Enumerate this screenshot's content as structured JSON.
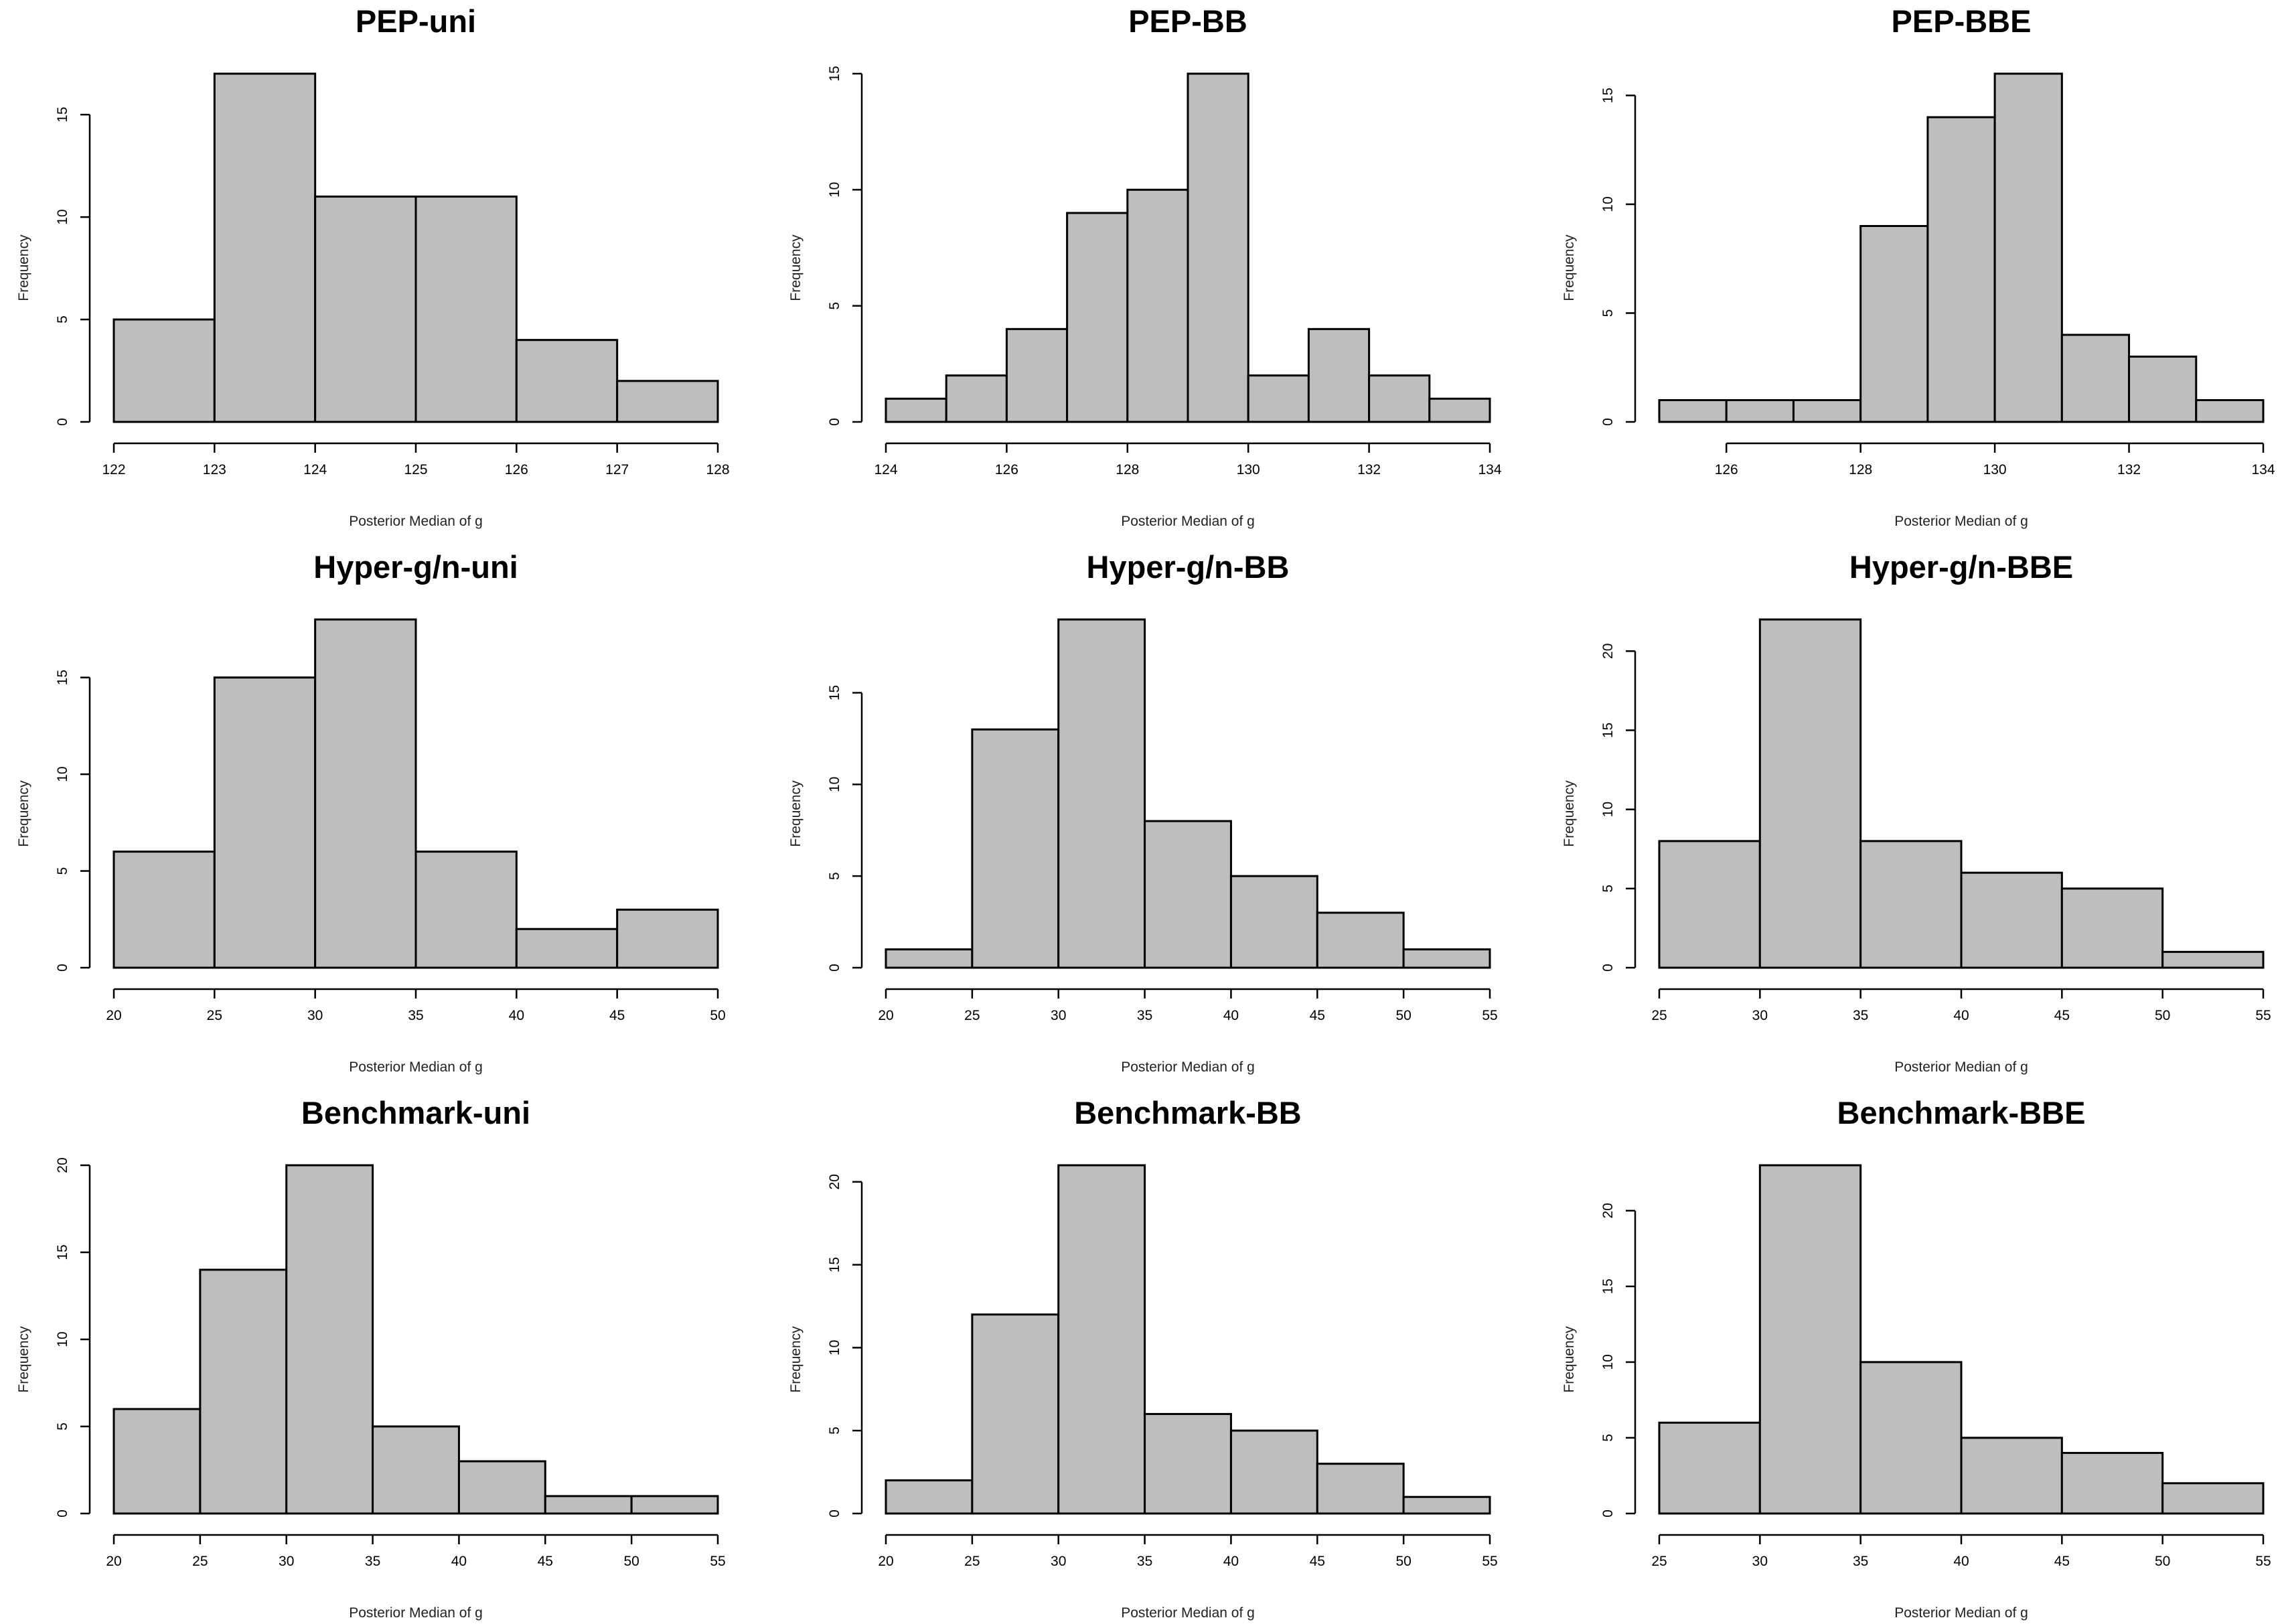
{
  "chart_data": [
    {
      "type": "bar",
      "title": "PEP-uni",
      "xlabel": "Posterior Median of g",
      "ylabel": "Frequency",
      "bin_edges": [
        122,
        123,
        124,
        125,
        126,
        127,
        128
      ],
      "values": [
        5,
        17,
        11,
        11,
        4,
        2
      ],
      "xlim": [
        122,
        128
      ],
      "xticks": [
        122,
        123,
        124,
        125,
        126,
        127,
        128
      ],
      "yticks": [
        0,
        5,
        10,
        15
      ]
    },
    {
      "type": "bar",
      "title": "PEP-BB",
      "xlabel": "Posterior Median of g",
      "ylabel": "Frequency",
      "bin_edges": [
        124,
        125,
        126,
        127,
        128,
        129,
        130,
        131,
        132,
        133,
        134
      ],
      "values": [
        1,
        2,
        4,
        9,
        10,
        15,
        2,
        4,
        2,
        1
      ],
      "xlim": [
        124,
        134
      ],
      "xticks": [
        124,
        126,
        128,
        130,
        132,
        134
      ],
      "yticks": [
        0,
        5,
        10,
        15
      ]
    },
    {
      "type": "bar",
      "title": "PEP-BBE",
      "xlabel": "Posterior Median of g",
      "ylabel": "Frequency",
      "bin_edges": [
        125,
        126,
        127,
        128,
        129,
        130,
        131,
        132,
        133,
        134
      ],
      "values": [
        1,
        1,
        1,
        9,
        14,
        16,
        4,
        3,
        1
      ],
      "xlim": [
        125,
        134
      ],
      "xticks": [
        126,
        128,
        130,
        132,
        134
      ],
      "yticks": [
        0,
        5,
        10,
        15
      ]
    },
    {
      "type": "bar",
      "title": "Hyper-g/n-uni",
      "xlabel": "Posterior Median of g",
      "ylabel": "Frequency",
      "bin_edges": [
        20,
        25,
        30,
        35,
        40,
        45,
        50
      ],
      "values": [
        6,
        15,
        18,
        6,
        2,
        3
      ],
      "xlim": [
        20,
        50
      ],
      "xticks": [
        20,
        25,
        30,
        35,
        40,
        45,
        50
      ],
      "yticks": [
        0,
        5,
        10,
        15
      ]
    },
    {
      "type": "bar",
      "title": "Hyper-g/n-BB",
      "xlabel": "Posterior Median of g",
      "ylabel": "Frequency",
      "bin_edges": [
        20,
        25,
        30,
        35,
        40,
        45,
        50,
        55
      ],
      "values": [
        1,
        13,
        19,
        8,
        5,
        3,
        1
      ],
      "xlim": [
        20,
        55
      ],
      "xticks": [
        20,
        25,
        30,
        35,
        40,
        45,
        50,
        55
      ],
      "yticks": [
        0,
        5,
        10,
        15
      ]
    },
    {
      "type": "bar",
      "title": "Hyper-g/n-BBE",
      "xlabel": "Posterior Median of g",
      "ylabel": "Frequency",
      "bin_edges": [
        25,
        30,
        35,
        40,
        45,
        50,
        55
      ],
      "values": [
        8,
        22,
        8,
        6,
        5,
        1
      ],
      "xlim": [
        25,
        55
      ],
      "xticks": [
        25,
        30,
        35,
        40,
        45,
        50,
        55
      ],
      "yticks": [
        0,
        5,
        10,
        15,
        20
      ]
    },
    {
      "type": "bar",
      "title": "Benchmark-uni",
      "xlabel": "Posterior Median of g",
      "ylabel": "Frequency",
      "bin_edges": [
        20,
        25,
        30,
        35,
        40,
        45,
        50,
        55
      ],
      "values": [
        6,
        14,
        20,
        5,
        3,
        1,
        1
      ],
      "xlim": [
        20,
        55
      ],
      "xticks": [
        20,
        25,
        30,
        35,
        40,
        45,
        50,
        55
      ],
      "yticks": [
        0,
        5,
        10,
        15,
        20
      ]
    },
    {
      "type": "bar",
      "title": "Benchmark-BB",
      "xlabel": "Posterior Median of g",
      "ylabel": "Frequency",
      "bin_edges": [
        20,
        25,
        30,
        35,
        40,
        45,
        50,
        55
      ],
      "values": [
        2,
        12,
        21,
        6,
        5,
        3,
        1
      ],
      "xlim": [
        20,
        55
      ],
      "xticks": [
        20,
        25,
        30,
        35,
        40,
        45,
        50,
        55
      ],
      "yticks": [
        0,
        5,
        10,
        15,
        20
      ]
    },
    {
      "type": "bar",
      "title": "Benchmark-BBE",
      "xlabel": "Posterior Median of g",
      "ylabel": "Frequency",
      "bin_edges": [
        25,
        30,
        35,
        40,
        45,
        50,
        55
      ],
      "values": [
        6,
        23,
        10,
        5,
        4,
        2
      ],
      "xlim": [
        25,
        55
      ],
      "xticks": [
        25,
        30,
        35,
        40,
        45,
        50,
        55
      ],
      "yticks": [
        0,
        5,
        10,
        15,
        20
      ]
    }
  ]
}
